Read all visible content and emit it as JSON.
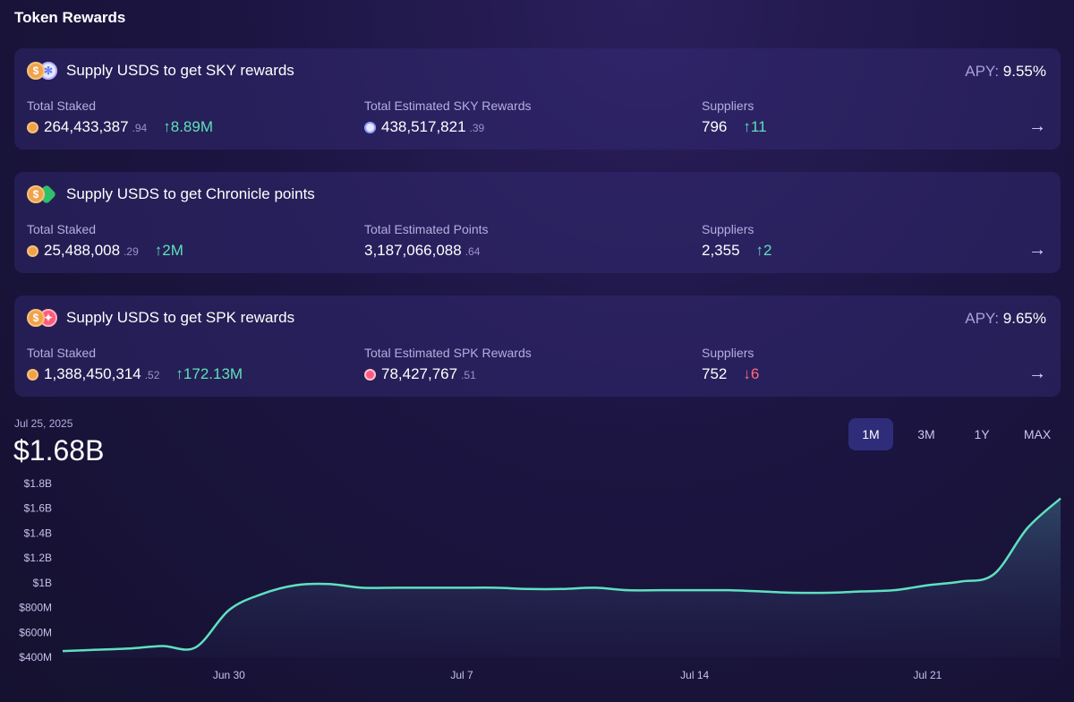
{
  "page_title": "Token Rewards",
  "cards": [
    {
      "title": "Supply USDS to get SKY rewards",
      "icons": [
        "usds-icon",
        "sky-icon"
      ],
      "apy_label": "APY:",
      "apy_value": "9.55%",
      "total_staked_label": "Total Staked",
      "total_staked_int": "264,433,387",
      "total_staked_dec": ".94",
      "total_staked_delta": "↑8.89M",
      "rewards_label": "Total Estimated SKY Rewards",
      "rewards_int": "438,517,821",
      "rewards_dec": ".39",
      "suppliers_label": "Suppliers",
      "suppliers_value": "796",
      "suppliers_delta": "↑11"
    },
    {
      "title": "Supply USDS to get Chronicle points",
      "icons": [
        "usds-icon",
        "chronicle-icon"
      ],
      "total_staked_label": "Total Staked",
      "total_staked_int": "25,488,008",
      "total_staked_dec": ".29",
      "total_staked_delta": "↑2M",
      "rewards_label": "Total Estimated Points",
      "rewards_int": "3,187,066,088",
      "rewards_dec": ".64",
      "suppliers_label": "Suppliers",
      "suppliers_value": "2,355",
      "suppliers_delta": "↑2"
    },
    {
      "title": "Supply USDS to get SPK rewards",
      "icons": [
        "usds-icon",
        "spk-icon"
      ],
      "apy_label": "APY:",
      "apy_value": "9.65%",
      "total_staked_label": "Total Staked",
      "total_staked_int": "1,388,450,314",
      "total_staked_dec": ".52",
      "total_staked_delta": "↑172.13M",
      "rewards_label": "Total Estimated SPK Rewards",
      "rewards_int": "78,427,767",
      "rewards_dec": ".51",
      "suppliers_label": "Suppliers",
      "suppliers_value": "752",
      "suppliers_delta": "↓6"
    }
  ],
  "chart": {
    "date": "Jul 25, 2025",
    "value": "$1.68B",
    "ranges": [
      "1M",
      "3M",
      "1Y",
      "MAX"
    ],
    "active_range": "1M"
  },
  "colors": {
    "line": "#5fe0c0",
    "up": "#5fe0b8",
    "down": "#ff6b7a",
    "active_tab": "#2f2d7a"
  },
  "chart_data": {
    "type": "area",
    "y_unit": "USD billions",
    "ylim": [
      0.4,
      1.8
    ],
    "y_ticks": [
      0.4,
      0.6,
      0.8,
      1.0,
      1.2,
      1.4,
      1.6,
      1.8
    ],
    "y_tick_labels": [
      "$400M",
      "$600M",
      "$800M",
      "$1B",
      "$1.2B",
      "$1.4B",
      "$1.6B",
      "$1.8B"
    ],
    "x_tick_labels": [
      "Jun 30",
      "Jul 7",
      "Jul 14",
      "Jul 21"
    ],
    "x_tick_dates": [
      "2025-06-30",
      "2025-07-07",
      "2025-07-14",
      "2025-07-21"
    ],
    "xlim": [
      "2025-06-25",
      "2025-07-25"
    ],
    "x": [
      "2025-06-25",
      "2025-06-26",
      "2025-06-27",
      "2025-06-28",
      "2025-06-29",
      "2025-06-30",
      "2025-07-01",
      "2025-07-02",
      "2025-07-03",
      "2025-07-04",
      "2025-07-05",
      "2025-07-06",
      "2025-07-07",
      "2025-07-08",
      "2025-07-09",
      "2025-07-10",
      "2025-07-11",
      "2025-07-12",
      "2025-07-13",
      "2025-07-14",
      "2025-07-15",
      "2025-07-16",
      "2025-07-17",
      "2025-07-18",
      "2025-07-19",
      "2025-07-20",
      "2025-07-21",
      "2025-07-22",
      "2025-07-23",
      "2025-07-24",
      "2025-07-25"
    ],
    "values": [
      0.45,
      0.46,
      0.47,
      0.49,
      0.48,
      0.78,
      0.91,
      0.98,
      0.99,
      0.96,
      0.96,
      0.96,
      0.96,
      0.96,
      0.95,
      0.95,
      0.96,
      0.94,
      0.94,
      0.94,
      0.94,
      0.93,
      0.92,
      0.92,
      0.93,
      0.94,
      0.98,
      1.01,
      1.07,
      1.44,
      1.68
    ],
    "grid": false,
    "legend": "none"
  }
}
